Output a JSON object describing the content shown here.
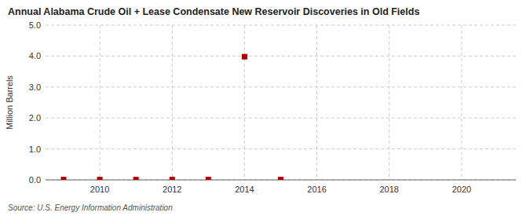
{
  "chart_data": {
    "type": "scatter",
    "title": "Annual Alabama Crude Oil + Lease Condensate New Reservoir Discoveries in Old Fields",
    "y_label": "Million Barrels",
    "source": "Source: U.S. Energy Information Administration",
    "x": [
      2009,
      2010,
      2011,
      2012,
      2013,
      2014,
      2015
    ],
    "values": [
      0.01,
      0.01,
      0.01,
      0.01,
      0.01,
      3.98,
      0.01
    ],
    "color": "#aa0000",
    "marker": "square",
    "xlim": [
      2008.5,
      2021.5
    ],
    "ylim": [
      0.0,
      5.0
    ],
    "xticks": [
      2010,
      2012,
      2014,
      2016,
      2018,
      2020
    ],
    "yticks": [
      {
        "value": 0.0,
        "label": "0.0"
      },
      {
        "value": 1.0,
        "label": "1.0"
      },
      {
        "value": 2.0,
        "label": "2.0"
      },
      {
        "value": 3.0,
        "label": "3.0"
      },
      {
        "value": 4.0,
        "label": "4.0"
      },
      {
        "value": 5.0,
        "label": "5.0"
      }
    ],
    "grid": true
  }
}
